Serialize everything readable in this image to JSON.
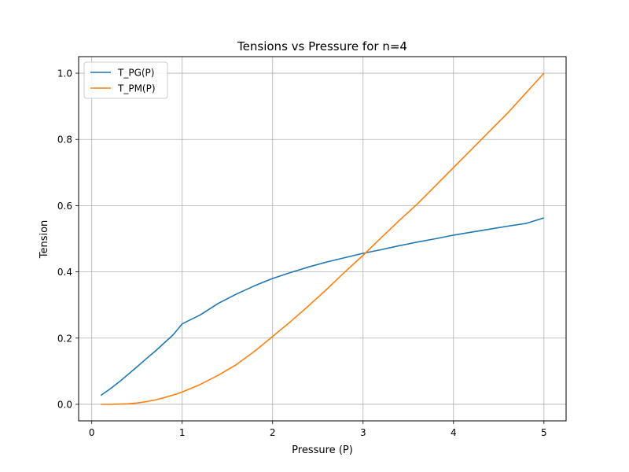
{
  "chart_data": {
    "type": "line",
    "title": "Tensions vs Pressure for n=4",
    "xlabel": "Pressure (P)",
    "ylabel": "Tension",
    "xlim": [
      -0.145,
      5.245
    ],
    "ylim": [
      -0.05,
      1.05
    ],
    "xticks": [
      0,
      1,
      2,
      3,
      4,
      5
    ],
    "yticks": [
      0.0,
      0.2,
      0.4,
      0.6,
      0.8,
      1.0
    ],
    "xtick_labels": [
      "0",
      "1",
      "2",
      "3",
      "4",
      "5"
    ],
    "ytick_labels": [
      "0.0",
      "0.2",
      "0.4",
      "0.6",
      "0.8",
      "1.0"
    ],
    "grid": true,
    "legend_position": "upper-left",
    "x": [
      0.1,
      0.2,
      0.3,
      0.4,
      0.5,
      0.6,
      0.7,
      0.8,
      0.9,
      1.0,
      1.2,
      1.4,
      1.6,
      1.8,
      2.0,
      2.2,
      2.4,
      2.6,
      2.8,
      3.0,
      3.2,
      3.4,
      3.6,
      3.8,
      4.0,
      4.2,
      4.4,
      4.6,
      4.8,
      5.0
    ],
    "series": [
      {
        "name": "T_PG(P)",
        "color": "#1f77b4",
        "values": [
          0.027,
          0.046,
          0.067,
          0.09,
          0.113,
          0.137,
          0.16,
          0.185,
          0.21,
          0.243,
          0.27,
          0.305,
          0.333,
          0.358,
          0.38,
          0.398,
          0.415,
          0.43,
          0.443,
          0.456,
          0.467,
          0.479,
          0.49,
          0.5,
          0.511,
          0.52,
          0.529,
          0.538,
          0.546,
          0.563
        ]
      },
      {
        "name": "T_PM(P)",
        "color": "#ff7f0e",
        "values": [
          0.0,
          0.0,
          0.0005,
          0.0015,
          0.004,
          0.008,
          0.013,
          0.02,
          0.028,
          0.037,
          0.06,
          0.088,
          0.12,
          0.16,
          0.205,
          0.25,
          0.298,
          0.348,
          0.4,
          0.45,
          0.503,
          0.555,
          0.605,
          0.66,
          0.715,
          0.77,
          0.825,
          0.88,
          0.94,
          1.0
        ]
      }
    ]
  }
}
